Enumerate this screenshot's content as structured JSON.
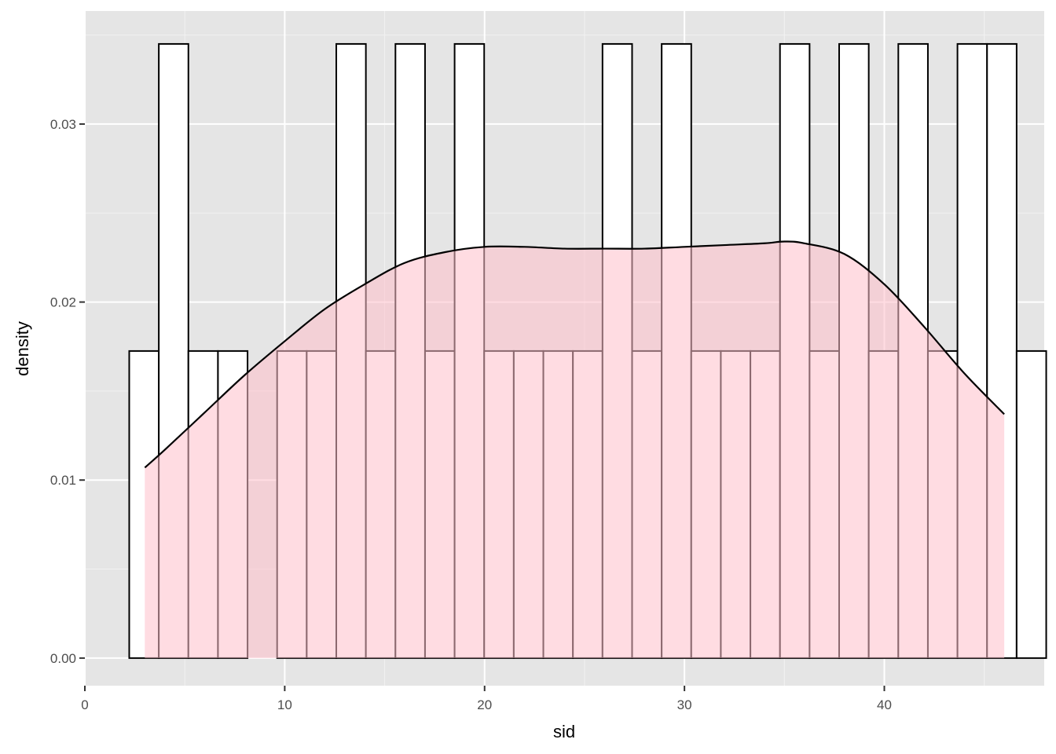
{
  "chart_data": {
    "type": "histogram",
    "xlabel": "sid",
    "ylabel": "density",
    "xlim": [
      0,
      48.0
    ],
    "ylim": [
      -0.00155,
      0.03635
    ],
    "x_ticks": [
      0,
      10,
      20,
      30,
      40
    ],
    "x_tick_labels": [
      "0",
      "10",
      "20",
      "30",
      "40"
    ],
    "y_ticks": [
      0.0,
      0.01,
      0.02,
      0.03
    ],
    "y_tick_labels": [
      "0.00",
      "0.01",
      "0.02",
      "0.03"
    ],
    "grid": true,
    "legend": "none",
    "colors": {
      "panel_background": "#e5e5e5",
      "grid_major": "#ffffff",
      "grid_minor": "#f2f2f2",
      "bar_fill": "#ffffff",
      "bar_stroke": "#000000",
      "density_fill": "#ffc0cb",
      "density_fill_opacity": 0.55,
      "density_line": "#000000"
    },
    "histogram": {
      "bin_start": 2.22,
      "bin_width": 1.48,
      "densities": [
        0.01725,
        0.0345,
        0.01725,
        0.01725,
        0.0,
        0.01725,
        0.01725,
        0.0345,
        0.01725,
        0.0345,
        0.01725,
        0.0345,
        0.01725,
        0.01725,
        0.01725,
        0.01725,
        0.0345,
        0.01725,
        0.0345,
        0.01725,
        0.01725,
        0.01725,
        0.0345,
        0.01725,
        0.0345,
        0.01725,
        0.0345,
        0.01725,
        0.0345,
        0.0345,
        0.01725
      ]
    },
    "density_curve": {
      "x": [
        3.0,
        4,
        6,
        8,
        10,
        12,
        14,
        16,
        18,
        20,
        22,
        24,
        26,
        28,
        30,
        32,
        34,
        35,
        36,
        38,
        40,
        42,
        44,
        46.0
      ],
      "y": [
        0.0107,
        0.0117,
        0.0138,
        0.0159,
        0.0178,
        0.0196,
        0.021,
        0.0222,
        0.0228,
        0.0231,
        0.0231,
        0.023,
        0.023,
        0.023,
        0.0231,
        0.0232,
        0.0233,
        0.0234,
        0.0233,
        0.0227,
        0.021,
        0.0186,
        0.016,
        0.0137
      ]
    }
  }
}
